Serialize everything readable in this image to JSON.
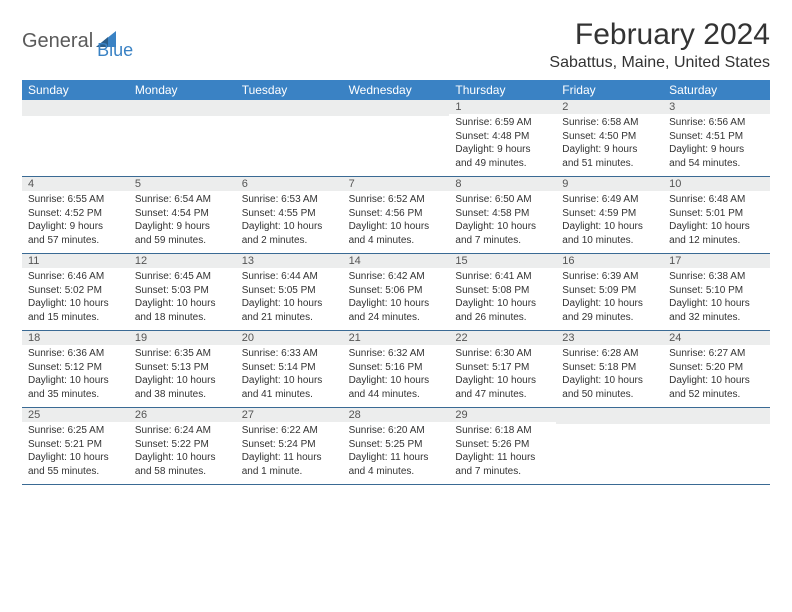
{
  "brand": {
    "word1": "General",
    "word2": "Blue",
    "color1": "#5a5a5a",
    "color2": "#3a82c4"
  },
  "title": "February 2024",
  "location": "Sabattus, Maine, United States",
  "colors": {
    "header_bg": "#3a82c4",
    "header_text": "#ffffff",
    "day_num_bg": "#eceded",
    "week_border": "#3a6a94",
    "text": "#333333",
    "page_bg": "#ffffff"
  },
  "day_names": [
    "Sunday",
    "Monday",
    "Tuesday",
    "Wednesday",
    "Thursday",
    "Friday",
    "Saturday"
  ],
  "weeks": [
    [
      {
        "n": "",
        "l": []
      },
      {
        "n": "",
        "l": []
      },
      {
        "n": "",
        "l": []
      },
      {
        "n": "",
        "l": []
      },
      {
        "n": "1",
        "l": [
          "Sunrise: 6:59 AM",
          "Sunset: 4:48 PM",
          "Daylight: 9 hours",
          "and 49 minutes."
        ]
      },
      {
        "n": "2",
        "l": [
          "Sunrise: 6:58 AM",
          "Sunset: 4:50 PM",
          "Daylight: 9 hours",
          "and 51 minutes."
        ]
      },
      {
        "n": "3",
        "l": [
          "Sunrise: 6:56 AM",
          "Sunset: 4:51 PM",
          "Daylight: 9 hours",
          "and 54 minutes."
        ]
      }
    ],
    [
      {
        "n": "4",
        "l": [
          "Sunrise: 6:55 AM",
          "Sunset: 4:52 PM",
          "Daylight: 9 hours",
          "and 57 minutes."
        ]
      },
      {
        "n": "5",
        "l": [
          "Sunrise: 6:54 AM",
          "Sunset: 4:54 PM",
          "Daylight: 9 hours",
          "and 59 minutes."
        ]
      },
      {
        "n": "6",
        "l": [
          "Sunrise: 6:53 AM",
          "Sunset: 4:55 PM",
          "Daylight: 10 hours",
          "and 2 minutes."
        ]
      },
      {
        "n": "7",
        "l": [
          "Sunrise: 6:52 AM",
          "Sunset: 4:56 PM",
          "Daylight: 10 hours",
          "and 4 minutes."
        ]
      },
      {
        "n": "8",
        "l": [
          "Sunrise: 6:50 AM",
          "Sunset: 4:58 PM",
          "Daylight: 10 hours",
          "and 7 minutes."
        ]
      },
      {
        "n": "9",
        "l": [
          "Sunrise: 6:49 AM",
          "Sunset: 4:59 PM",
          "Daylight: 10 hours",
          "and 10 minutes."
        ]
      },
      {
        "n": "10",
        "l": [
          "Sunrise: 6:48 AM",
          "Sunset: 5:01 PM",
          "Daylight: 10 hours",
          "and 12 minutes."
        ]
      }
    ],
    [
      {
        "n": "11",
        "l": [
          "Sunrise: 6:46 AM",
          "Sunset: 5:02 PM",
          "Daylight: 10 hours",
          "and 15 minutes."
        ]
      },
      {
        "n": "12",
        "l": [
          "Sunrise: 6:45 AM",
          "Sunset: 5:03 PM",
          "Daylight: 10 hours",
          "and 18 minutes."
        ]
      },
      {
        "n": "13",
        "l": [
          "Sunrise: 6:44 AM",
          "Sunset: 5:05 PM",
          "Daylight: 10 hours",
          "and 21 minutes."
        ]
      },
      {
        "n": "14",
        "l": [
          "Sunrise: 6:42 AM",
          "Sunset: 5:06 PM",
          "Daylight: 10 hours",
          "and 24 minutes."
        ]
      },
      {
        "n": "15",
        "l": [
          "Sunrise: 6:41 AM",
          "Sunset: 5:08 PM",
          "Daylight: 10 hours",
          "and 26 minutes."
        ]
      },
      {
        "n": "16",
        "l": [
          "Sunrise: 6:39 AM",
          "Sunset: 5:09 PM",
          "Daylight: 10 hours",
          "and 29 minutes."
        ]
      },
      {
        "n": "17",
        "l": [
          "Sunrise: 6:38 AM",
          "Sunset: 5:10 PM",
          "Daylight: 10 hours",
          "and 32 minutes."
        ]
      }
    ],
    [
      {
        "n": "18",
        "l": [
          "Sunrise: 6:36 AM",
          "Sunset: 5:12 PM",
          "Daylight: 10 hours",
          "and 35 minutes."
        ]
      },
      {
        "n": "19",
        "l": [
          "Sunrise: 6:35 AM",
          "Sunset: 5:13 PM",
          "Daylight: 10 hours",
          "and 38 minutes."
        ]
      },
      {
        "n": "20",
        "l": [
          "Sunrise: 6:33 AM",
          "Sunset: 5:14 PM",
          "Daylight: 10 hours",
          "and 41 minutes."
        ]
      },
      {
        "n": "21",
        "l": [
          "Sunrise: 6:32 AM",
          "Sunset: 5:16 PM",
          "Daylight: 10 hours",
          "and 44 minutes."
        ]
      },
      {
        "n": "22",
        "l": [
          "Sunrise: 6:30 AM",
          "Sunset: 5:17 PM",
          "Daylight: 10 hours",
          "and 47 minutes."
        ]
      },
      {
        "n": "23",
        "l": [
          "Sunrise: 6:28 AM",
          "Sunset: 5:18 PM",
          "Daylight: 10 hours",
          "and 50 minutes."
        ]
      },
      {
        "n": "24",
        "l": [
          "Sunrise: 6:27 AM",
          "Sunset: 5:20 PM",
          "Daylight: 10 hours",
          "and 52 minutes."
        ]
      }
    ],
    [
      {
        "n": "25",
        "l": [
          "Sunrise: 6:25 AM",
          "Sunset: 5:21 PM",
          "Daylight: 10 hours",
          "and 55 minutes."
        ]
      },
      {
        "n": "26",
        "l": [
          "Sunrise: 6:24 AM",
          "Sunset: 5:22 PM",
          "Daylight: 10 hours",
          "and 58 minutes."
        ]
      },
      {
        "n": "27",
        "l": [
          "Sunrise: 6:22 AM",
          "Sunset: 5:24 PM",
          "Daylight: 11 hours",
          "and 1 minute."
        ]
      },
      {
        "n": "28",
        "l": [
          "Sunrise: 6:20 AM",
          "Sunset: 5:25 PM",
          "Daylight: 11 hours",
          "and 4 minutes."
        ]
      },
      {
        "n": "29",
        "l": [
          "Sunrise: 6:18 AM",
          "Sunset: 5:26 PM",
          "Daylight: 11 hours",
          "and 7 minutes."
        ]
      },
      {
        "n": "",
        "l": []
      },
      {
        "n": "",
        "l": []
      }
    ]
  ]
}
